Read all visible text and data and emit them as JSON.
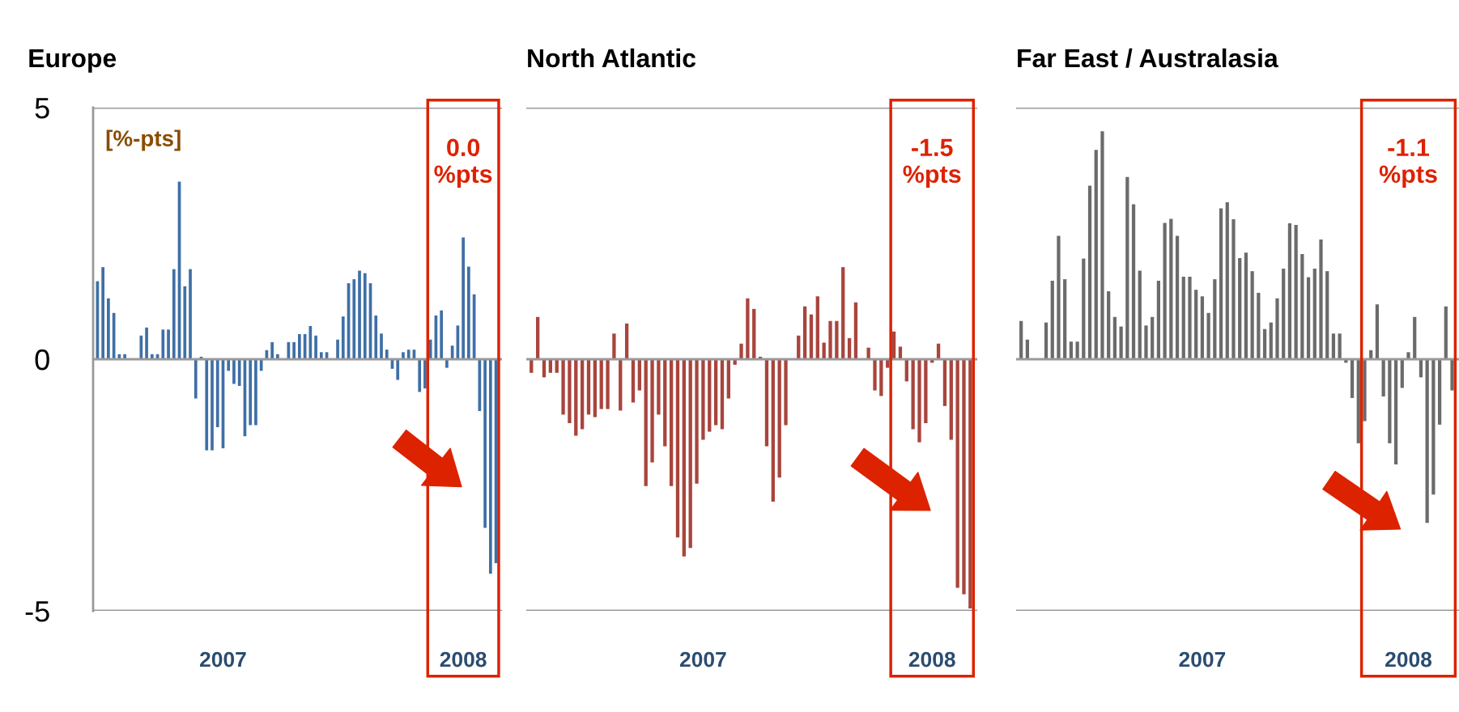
{
  "chart_data": [
    {
      "type": "bar",
      "title": "Europe",
      "color": "#3f6fa6",
      "ylim": [
        -5,
        5
      ],
      "yticks": [
        -5,
        0,
        5
      ],
      "grid": "y",
      "annotations": [
        "[%-pts]",
        "0.0 %pts"
      ],
      "categories": [
        null,
        null,
        null,
        null,
        null,
        null,
        null,
        null,
        null,
        null,
        null,
        null,
        null,
        null,
        null,
        null,
        null,
        null,
        null,
        null,
        null,
        null,
        null,
        "2007",
        null,
        null,
        null,
        null,
        null,
        null,
        null,
        null,
        null,
        null,
        null,
        null,
        null,
        null,
        null,
        null,
        null,
        null,
        null,
        null,
        null,
        null,
        null,
        null,
        null,
        null,
        null,
        null,
        null,
        null,
        null,
        null,
        null,
        null,
        null,
        null,
        null,
        null,
        null,
        null,
        null,
        null,
        null,
        "2008",
        null,
        null,
        null,
        null,
        null,
        null
      ],
      "values": [
        1.55,
        1.83,
        1.21,
        0.92,
        0.1,
        0.1,
        null,
        null,
        0.47,
        0.63,
        0.1,
        0.1,
        0.59,
        0.59,
        1.79,
        3.53,
        1.45,
        1.79,
        -0.78,
        0.05,
        -1.81,
        -1.81,
        -1.35,
        -1.77,
        -0.23,
        -0.49,
        -0.53,
        -1.53,
        -1.31,
        -1.31,
        -0.23,
        0.18,
        0.34,
        0.1,
        null,
        0.34,
        0.34,
        0.5,
        0.5,
        0.66,
        0.47,
        0.14,
        0.14,
        null,
        0.39,
        0.85,
        1.51,
        1.59,
        1.76,
        1.71,
        1.51,
        0.87,
        0.51,
        0.19,
        -0.19,
        -0.41,
        0.14,
        0.19,
        0.19,
        -0.65,
        -0.58,
        0.39,
        0.87,
        0.97,
        -0.17,
        0.27,
        0.67,
        2.42,
        1.84,
        1.29,
        -1.03,
        -3.35,
        -4.26,
        -4.05
      ]
    },
    {
      "type": "bar",
      "title": "North Atlantic",
      "color": "#a8453d",
      "ylim": [
        -5,
        5
      ],
      "yticks": [
        -5,
        0,
        5
      ],
      "grid": "y",
      "tick_labels": "x",
      "annotations": [
        "-1.5 %pts"
      ],
      "categories": [
        null,
        null,
        null,
        null,
        null,
        null,
        null,
        null,
        null,
        null,
        null,
        null,
        null,
        null,
        null,
        null,
        null,
        null,
        null,
        null,
        null,
        null,
        null,
        null,
        null,
        null,
        null,
        "2007",
        null,
        null,
        null,
        null,
        null,
        null,
        null,
        null,
        null,
        null,
        null,
        null,
        null,
        null,
        null,
        null,
        null,
        null,
        null,
        null,
        null,
        null,
        null,
        null,
        null,
        null,
        null,
        null,
        null,
        null,
        null,
        null,
        null,
        null,
        null,
        "2008",
        null,
        null,
        null,
        null,
        null,
        null
      ],
      "values": [
        -0.27,
        0.84,
        -0.36,
        -0.27,
        -0.27,
        -1.1,
        -1.27,
        -1.52,
        -1.39,
        -1.1,
        -1.15,
        -0.99,
        -0.99,
        0.51,
        -1.02,
        0.71,
        -0.86,
        -0.62,
        -2.52,
        -2.05,
        -1.1,
        -1.73,
        -2.52,
        -3.54,
        -3.92,
        -3.75,
        -2.47,
        -1.6,
        -1.44,
        -1.31,
        -1.39,
        -0.78,
        -0.11,
        0.31,
        1.21,
        1.0,
        0.05,
        -1.73,
        -2.83,
        -2.35,
        -1.31,
        null,
        0.47,
        1.05,
        0.89,
        1.25,
        0.33,
        0.76,
        0.76,
        1.83,
        0.42,
        1.13,
        null,
        0.23,
        -0.62,
        -0.73,
        -0.17,
        0.55,
        0.25,
        -0.44,
        -1.39,
        -1.65,
        -1.27,
        -0.07,
        0.31,
        -0.93,
        -1.6,
        -4.54,
        -4.67,
        -4.95
      ]
    },
    {
      "type": "bar",
      "title": "Far East / Australasia",
      "color": "#6b6b6b",
      "ylim": [
        -5,
        5
      ],
      "yticks": [
        -5,
        0,
        5
      ],
      "grid": "y",
      "tick_labels": "x",
      "annotations": [
        "-1.1 %pts"
      ],
      "categories": [
        null,
        null,
        null,
        null,
        null,
        null,
        null,
        null,
        null,
        null,
        null,
        null,
        null,
        null,
        null,
        null,
        null,
        null,
        null,
        null,
        null,
        null,
        null,
        null,
        null,
        null,
        null,
        null,
        null,
        "2007",
        null,
        null,
        null,
        null,
        null,
        null,
        null,
        null,
        null,
        null,
        null,
        null,
        null,
        null,
        null,
        null,
        null,
        null,
        null,
        null,
        null,
        null,
        null,
        null,
        null,
        null,
        null,
        null,
        null,
        null,
        null,
        null,
        "2008",
        null,
        null,
        null,
        null,
        null,
        null,
        null
      ],
      "values": [
        0.76,
        0.39,
        null,
        null,
        0.73,
        1.56,
        2.45,
        1.59,
        0.35,
        0.35,
        2.0,
        3.45,
        4.16,
        4.53,
        1.35,
        0.84,
        0.65,
        3.62,
        3.08,
        1.76,
        0.67,
        0.84,
        1.56,
        2.71,
        2.79,
        2.45,
        1.64,
        1.64,
        1.38,
        1.25,
        0.92,
        1.59,
        3.0,
        3.12,
        2.78,
        2.01,
        2.12,
        1.75,
        1.32,
        0.6,
        0.73,
        1.21,
        1.8,
        2.7,
        2.67,
        2.09,
        1.63,
        1.8,
        2.38,
        1.75,
        0.51,
        0.51,
        -0.07,
        -0.77,
        -1.67,
        -1.23,
        0.18,
        1.09,
        -0.74,
        -1.67,
        -2.09,
        -0.57,
        0.14,
        0.84,
        -0.36,
        -3.25,
        -2.69,
        -1.3,
        1.05,
        -0.62
      ]
    }
  ]
}
